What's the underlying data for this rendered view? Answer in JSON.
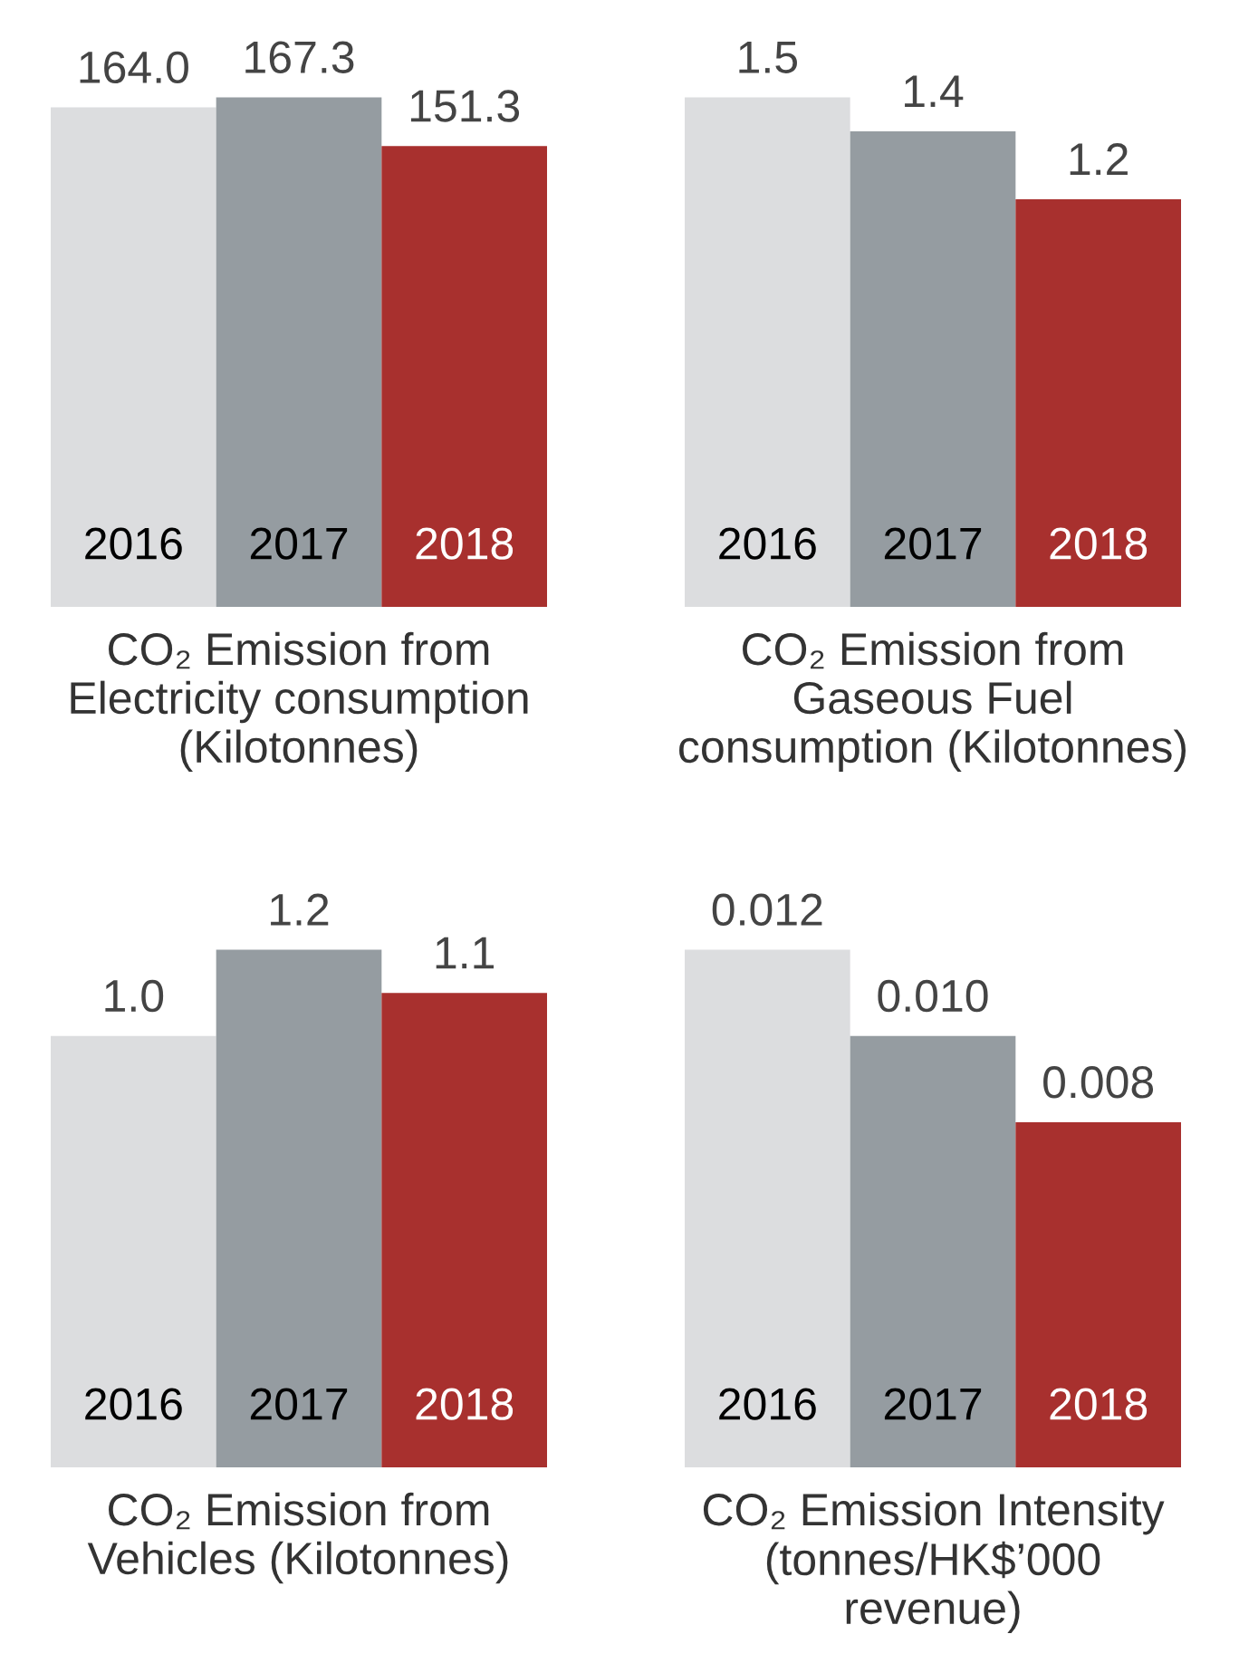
{
  "chart_data": [
    {
      "type": "bar",
      "xlabel": "CO₂ Emission from\nElectricity consumption\n(Kilotonnes)",
      "categories": [
        "2016",
        "2017",
        "2018"
      ],
      "values": [
        164.0,
        167.3,
        151.3
      ],
      "value_labels": [
        "164.0",
        "167.3",
        "151.3"
      ],
      "colors": [
        "#dcdddf",
        "#959ca1",
        "#a8302e"
      ]
    },
    {
      "type": "bar",
      "xlabel": "CO₂ Emission from\nGaseous Fuel\nconsumption (Kilotonnes)",
      "categories": [
        "2016",
        "2017",
        "2018"
      ],
      "values": [
        1.5,
        1.4,
        1.2
      ],
      "value_labels": [
        "1.5",
        "1.4",
        "1.2"
      ],
      "colors": [
        "#dcdddf",
        "#959ca1",
        "#a8302e"
      ]
    },
    {
      "type": "bar",
      "xlabel": "CO₂ Emission from\nVehicles (Kilotonnes)",
      "categories": [
        "2016",
        "2017",
        "2018"
      ],
      "values": [
        1.0,
        1.2,
        1.1
      ],
      "value_labels": [
        "1.0",
        "1.2",
        "1.1"
      ],
      "colors": [
        "#dcdddf",
        "#959ca1",
        "#a8302e"
      ]
    },
    {
      "type": "bar",
      "xlabel": "CO₂ Emission Intensity\n(tonnes/HK$’000\nrevenue)",
      "categories": [
        "2016",
        "2017",
        "2018"
      ],
      "values": [
        0.012,
        0.01,
        0.008
      ],
      "value_labels": [
        "0.012",
        "0.010",
        "0.008"
      ],
      "colors": [
        "#dcdddf",
        "#959ca1",
        "#a8302e"
      ]
    }
  ]
}
